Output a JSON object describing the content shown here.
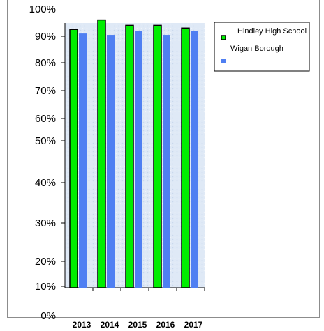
{
  "chart_data": {
    "type": "bar",
    "categories": [
      "2013",
      "2014",
      "2015",
      "2016",
      "2017"
    ],
    "series": [
      {
        "name": "Hindley High  School",
        "color": "#00ee00",
        "values": [
          92.5,
          96,
          94,
          94,
          93
        ]
      },
      {
        "name": "Wigan Borough",
        "color": "#4f7ff2",
        "values": [
          91,
          90.5,
          92,
          90.5,
          92
        ]
      }
    ],
    "y_tick_labels": [
      "0%",
      "10%",
      "20%",
      "30%",
      "40%",
      "50%",
      "60%",
      "70%",
      "80%",
      "90%",
      "100%"
    ],
    "ylim": [
      0,
      100
    ],
    "legend_position": "top-right",
    "plot_background": "#dde8f6"
  }
}
